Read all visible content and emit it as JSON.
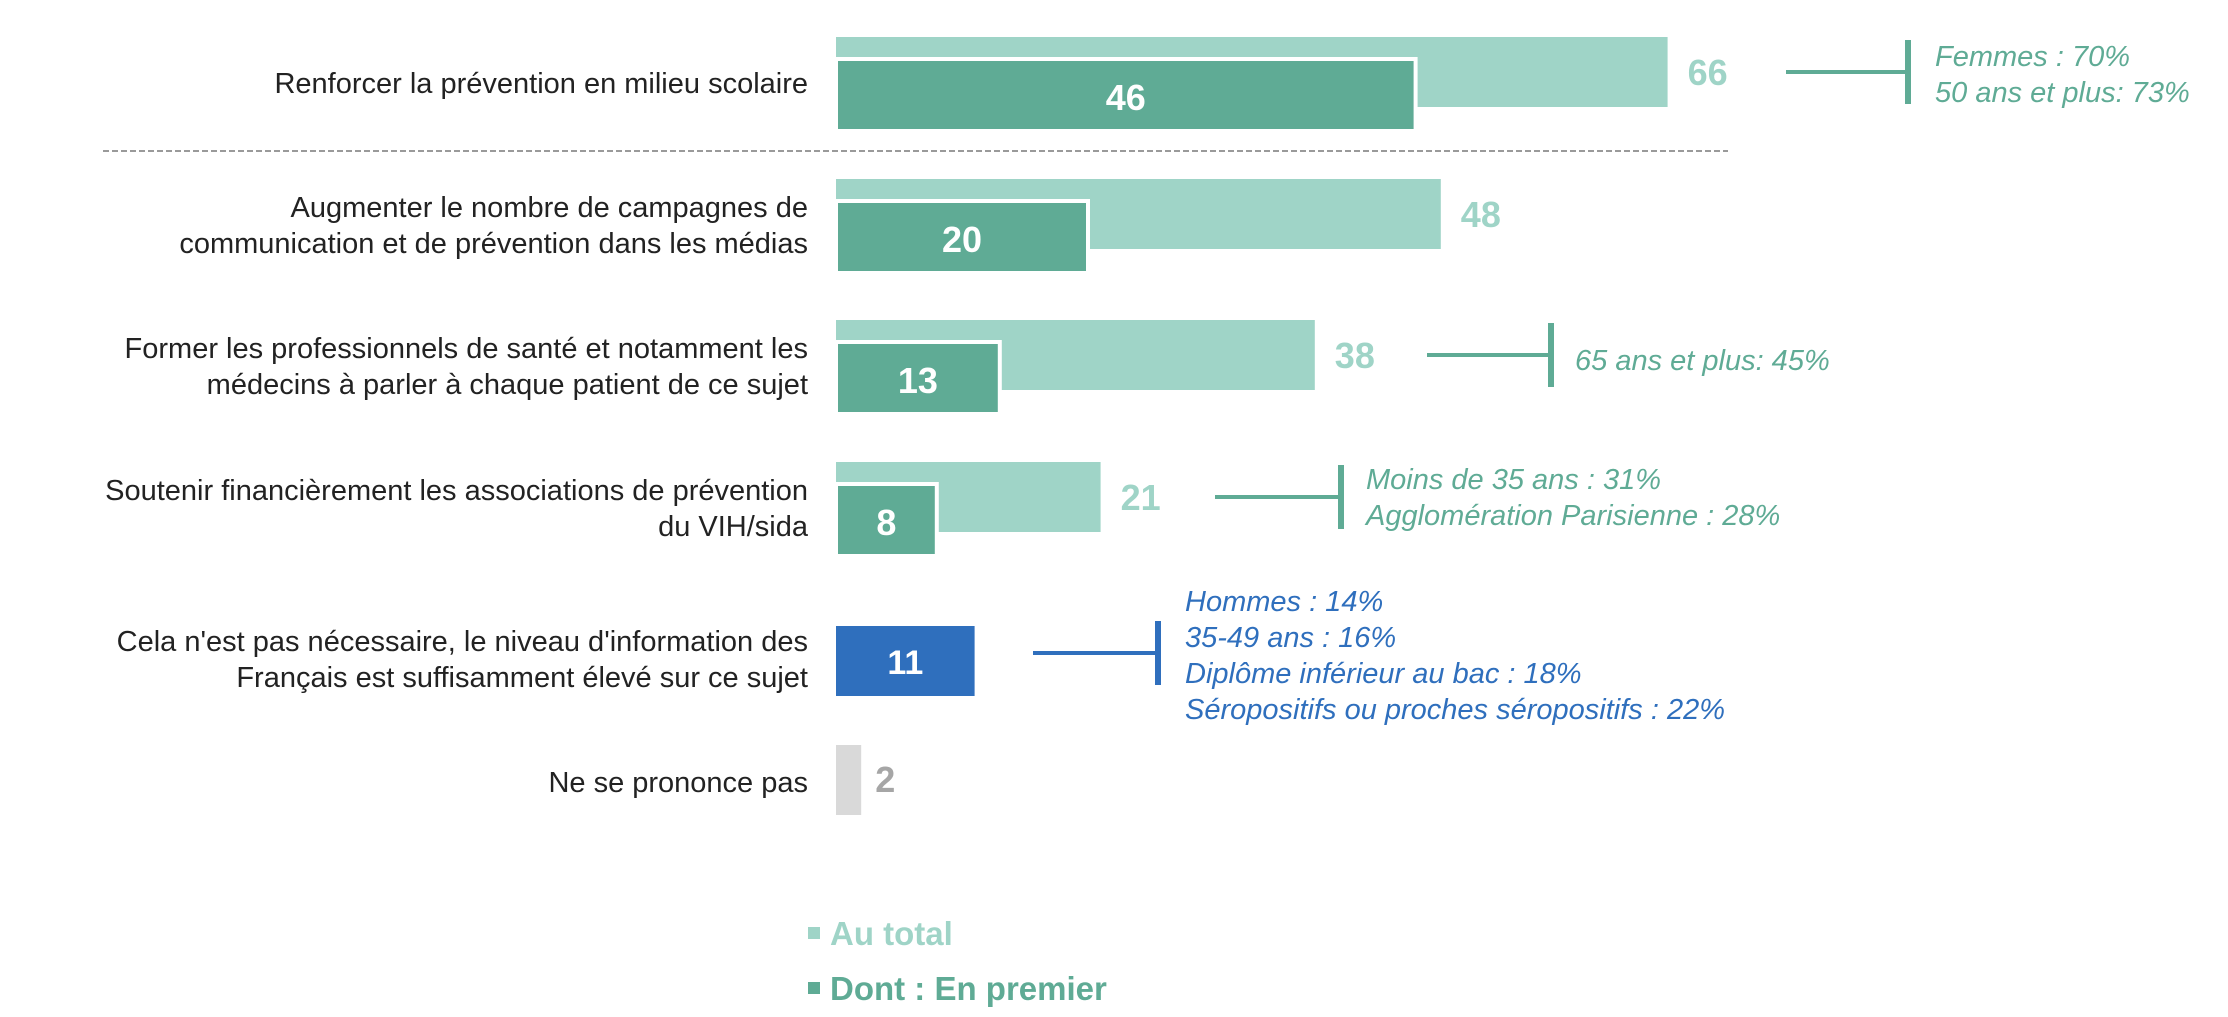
{
  "chart_data": {
    "type": "bar",
    "orientation": "horizontal",
    "categories": [
      "Renforcer la prévention en milieu scolaire",
      "Augmenter le nombre de campagnes de communication et de prévention dans les médias",
      "Former les professionnels de santé et notamment les médecins à parler à chaque patient de ce sujet",
      "Soutenir financièrement les associations de prévention du VIH/sida",
      "Cela n'est pas nécessaire, le niveau d'information des Français est suffisamment élevé sur ce sujet",
      "Ne se prononce pas"
    ],
    "category_lines": [
      [
        "Renforcer la prévention en milieu scolaire"
      ],
      [
        "Augmenter le nombre de campagnes de",
        "communication et de prévention dans les médias"
      ],
      [
        "Former les professionnels de santé et notamment les",
        "médecins à parler à chaque patient de ce sujet"
      ],
      [
        "Soutenir financièrement les associations de prévention",
        "du VIH/sida"
      ],
      [
        "Cela n'est pas nécessaire, le niveau d'information des",
        "Français est suffisamment élevé sur ce sujet"
      ],
      [
        "Ne se prononce pas"
      ]
    ],
    "series": [
      {
        "name": "Au total",
        "values": [
          66,
          48,
          38,
          21,
          11,
          2
        ]
      },
      {
        "name": "Dont : En premier",
        "values": [
          46,
          20,
          13,
          8,
          null,
          null
        ]
      }
    ],
    "annotations": [
      {
        "row": 0,
        "lines": [
          "Femmes : 70%",
          "50 ans et plus: 73%"
        ]
      },
      {
        "row": 2,
        "lines": [
          "65 ans et plus: 45%"
        ]
      },
      {
        "row": 3,
        "lines": [
          "Moins de 35 ans : 31%",
          "Agglomération Parisienne : 28%"
        ]
      },
      {
        "row": 4,
        "lines": [
          "Hommes : 14%",
          "35-49 ans : 16%",
          "Diplôme inférieur au bac : 18%",
          "Séropositifs ou proches séropositifs : 22%"
        ]
      }
    ],
    "xlim": [
      0,
      100
    ],
    "title": "",
    "xlabel": "",
    "ylabel": ""
  },
  "legend": {
    "total_label": "Au total",
    "first_label": "Dont : En premier"
  },
  "colors": {
    "total": "#9fd4c7",
    "first": "#5fab95",
    "negative": "#2f6fbd",
    "nsp": "#d9d9d9",
    "nsp_text": "#a6a6a6",
    "annot_teal": "#5fab95",
    "annot_blue": "#2f6fbd"
  }
}
